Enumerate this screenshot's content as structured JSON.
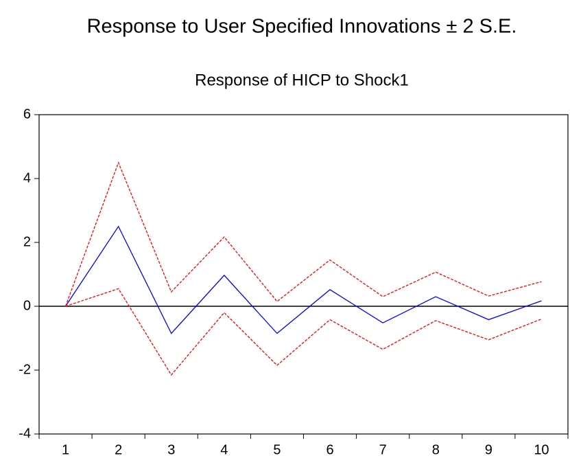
{
  "chart_data": {
    "type": "line",
    "title": "Response to User Specified Innovations ± 2 S.E.",
    "subtitle": "Response of HICP to Shock1",
    "categories": [
      "1",
      "2",
      "3",
      "4",
      "5",
      "6",
      "7",
      "8",
      "9",
      "10"
    ],
    "series": [
      {
        "color": "#0000ff",
        "dashed": false,
        "values": [
          0,
          2.5,
          -0.85,
          0.97,
          -0.85,
          0.52,
          -0.52,
          0.3,
          -0.42,
          0.17
        ]
      },
      {
        "color": "#ff0000",
        "dashed": true,
        "values": [
          0,
          4.5,
          0.45,
          2.17,
          0.15,
          1.45,
          0.3,
          1.07,
          0.32,
          0.77
        ]
      },
      {
        "color": "#ff0000",
        "dashed": true,
        "values": [
          0,
          0.55,
          -2.15,
          -0.2,
          -1.85,
          -0.42,
          -1.35,
          -0.45,
          -1.05,
          -0.4
        ]
      }
    ],
    "ylim": [
      -4,
      6
    ],
    "yticks": [
      -4,
      -2,
      0,
      2,
      4,
      6
    ],
    "grid": false
  }
}
